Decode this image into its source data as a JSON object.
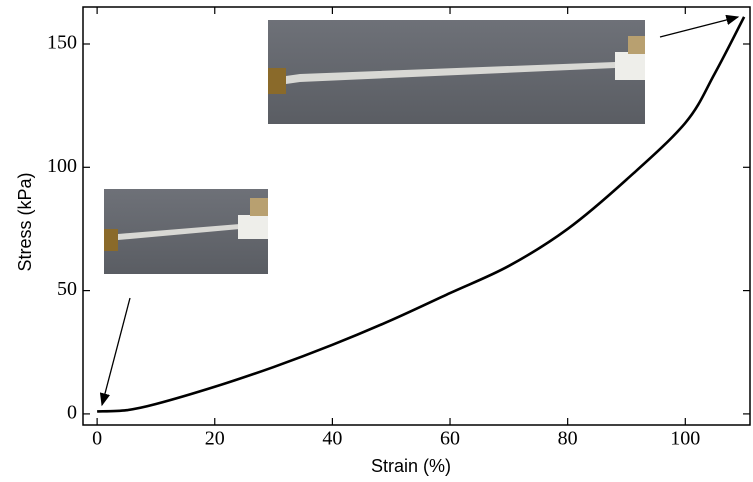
{
  "chart_data": {
    "type": "line",
    "x_label": "Strain (%)",
    "y_label": "Stress (kPa)",
    "x": [
      0,
      5,
      10,
      20,
      30,
      40,
      50,
      60,
      70,
      80,
      90,
      100,
      105,
      110
    ],
    "values": [
      1,
      1.5,
      4,
      11,
      19,
      28,
      38,
      49,
      60,
      75,
      95,
      118,
      138,
      161
    ],
    "color": "#000000",
    "xlim": [
      -2.4,
      111
    ],
    "ylim": [
      -4.5,
      165
    ],
    "xticks": [
      0,
      20,
      40,
      60,
      80,
      100
    ],
    "yticks": [
      0,
      50,
      100,
      150
    ]
  }
}
